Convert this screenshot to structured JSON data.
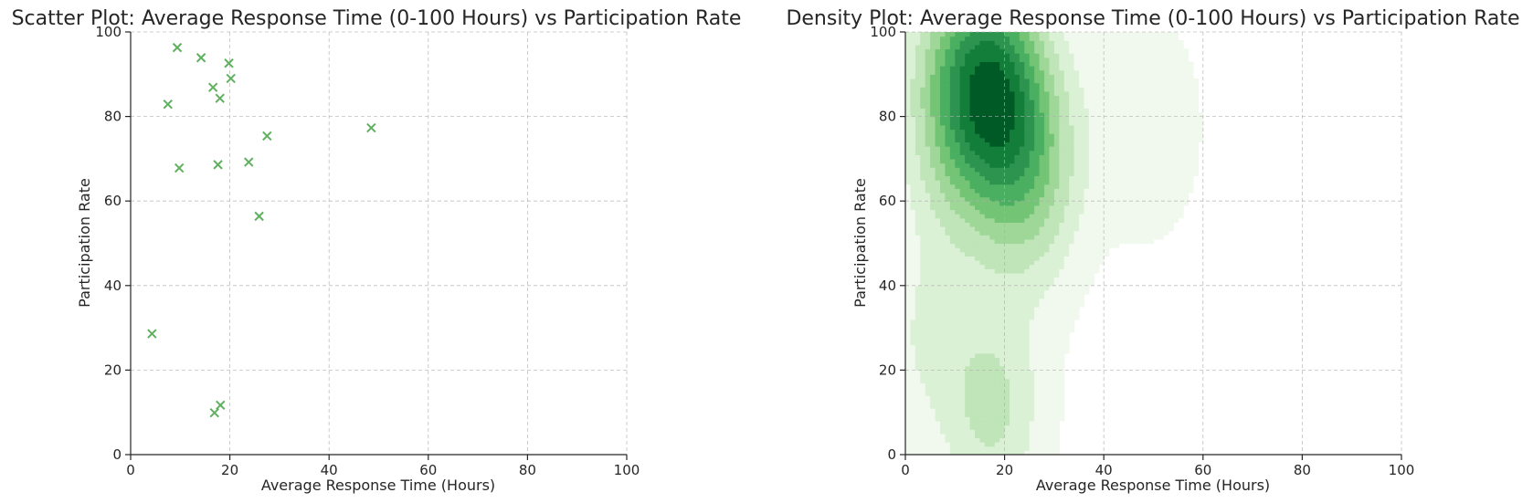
{
  "chart_data": [
    {
      "type": "scatter",
      "title": "Scatter Plot: Average Response Time (0-100 Hours) vs Participation Rate",
      "xlabel": "Average Response Time (Hours)",
      "ylabel": "Participation Rate",
      "xlim": [
        0,
        100
      ],
      "ylim": [
        0,
        100
      ],
      "xticks": [
        "0",
        "20",
        "40",
        "60",
        "80",
        "100"
      ],
      "yticks": [
        "0",
        "20",
        "40",
        "60",
        "80",
        "100"
      ],
      "grid": true,
      "marker": "x",
      "color": "#5fb05f",
      "points": [
        {
          "x": 9.4,
          "y": 96.3
        },
        {
          "x": 14.2,
          "y": 93.9
        },
        {
          "x": 19.8,
          "y": 92.6
        },
        {
          "x": 20.2,
          "y": 89.0
        },
        {
          "x": 16.6,
          "y": 86.9
        },
        {
          "x": 7.5,
          "y": 82.9
        },
        {
          "x": 18.0,
          "y": 84.3
        },
        {
          "x": 48.5,
          "y": 77.3
        },
        {
          "x": 27.5,
          "y": 75.4
        },
        {
          "x": 23.8,
          "y": 69.2
        },
        {
          "x": 17.6,
          "y": 68.6
        },
        {
          "x": 9.8,
          "y": 67.8
        },
        {
          "x": 25.9,
          "y": 56.4
        },
        {
          "x": 4.3,
          "y": 28.6
        },
        {
          "x": 18.1,
          "y": 11.7
        },
        {
          "x": 16.9,
          "y": 9.9
        }
      ]
    },
    {
      "type": "heatmap",
      "subtype": "kde-density",
      "title": "Density Plot: Average Response Time (0-100 Hours) vs Participation Rate",
      "xlabel": "Average Response Time (Hours)",
      "ylabel": "Participation Rate",
      "xlim": [
        0,
        100
      ],
      "ylim": [
        0,
        100
      ],
      "xticks": [
        "0",
        "20",
        "40",
        "60",
        "80",
        "100"
      ],
      "yticks": [
        "0",
        "20",
        "40",
        "60",
        "80",
        "100"
      ],
      "grid": true,
      "colormap": "Greens",
      "levels": [
        "#f1f9ee",
        "#dbf1d5",
        "#bfe5b8",
        "#9ed798",
        "#74c476",
        "#4aaf61",
        "#2d944f",
        "#137e3a",
        "#005a26"
      ],
      "source": "density of the scatter points"
    }
  ]
}
